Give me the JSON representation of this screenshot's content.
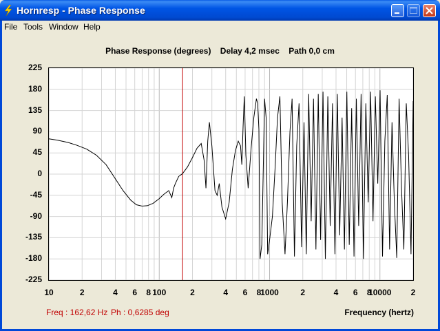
{
  "window": {
    "title": "Hornresp - Phase Response",
    "app_icon": "lightning-bolt-icon",
    "controls": [
      "minimize-icon",
      "maximize-icon",
      "close-icon"
    ]
  },
  "menu": {
    "items": [
      {
        "label": "File"
      },
      {
        "label": "Tools"
      },
      {
        "label": "Window"
      },
      {
        "label": "Help"
      }
    ]
  },
  "chart_title": "Phase Response (degrees)    Delay 4,2 msec    Path 0,0 cm",
  "readout": {
    "freq": "Freq : 162,62 Hz",
    "phase": "Ph : 0,6285 deg"
  },
  "colors": {
    "titlebar": "#0055e5",
    "cursor": "#c00000",
    "curve": "#000000",
    "readout": "#c00000",
    "grid": "#d4d4d4"
  },
  "chart_data": {
    "type": "line",
    "xlabel": "Frequency (hertz)",
    "ylabel": "",
    "x_scale": "log",
    "xlim": [
      10,
      20000
    ],
    "ylim": [
      -225,
      225
    ],
    "y_ticks": [
      "225",
      "180",
      "135",
      "90",
      "45",
      "0",
      "-45",
      "-90",
      "-135",
      "-180",
      "-225"
    ],
    "x_ticks": [
      {
        "value": 10,
        "label": "10"
      },
      {
        "value": 20,
        "label": "2"
      },
      {
        "value": 40,
        "label": "4"
      },
      {
        "value": 60,
        "label": "6"
      },
      {
        "value": 80,
        "label": "8"
      },
      {
        "value": 100,
        "label": "100"
      },
      {
        "value": 200,
        "label": "2"
      },
      {
        "value": 400,
        "label": "4"
      },
      {
        "value": 600,
        "label": "6"
      },
      {
        "value": 800,
        "label": "8"
      },
      {
        "value": 1000,
        "label": "1000"
      },
      {
        "value": 2000,
        "label": "2"
      },
      {
        "value": 4000,
        "label": "4"
      },
      {
        "value": 6000,
        "label": "6"
      },
      {
        "value": 8000,
        "label": "8"
      },
      {
        "value": 10000,
        "label": "10000"
      },
      {
        "value": 20000,
        "label": "2"
      }
    ],
    "cursor_x": 162.62,
    "grid": true,
    "series": [
      {
        "x": [
          10,
          12,
          15,
          18,
          22,
          27,
          33,
          40,
          47,
          55,
          62,
          70,
          78,
          88,
          100,
          110,
          122,
          130,
          135,
          140,
          150,
          162.6,
          180,
          200,
          220,
          240,
          255,
          265,
          275,
          285,
          300,
          320,
          335,
          350,
          370,
          400,
          430,
          460,
          490,
          520,
          545,
          560,
          575,
          590,
          610,
          640,
          680,
          720,
          760,
          780,
          800,
          820,
          850,
          880,
          900,
          930,
          960,
          1000,
          1060,
          1120,
          1180,
          1240,
          1300,
          1380,
          1450,
          1530,
          1600,
          1680,
          1760,
          1850,
          1950,
          2050,
          2150,
          2260,
          2380,
          2500,
          2630,
          2760,
          2900,
          3050,
          3200,
          3370,
          3540,
          3720,
          3910,
          4110,
          4320,
          4540,
          4770,
          5010,
          5270,
          5540,
          5820,
          6110,
          6420,
          6750,
          7090,
          7450,
          7830,
          8230,
          8650,
          9090,
          9550,
          10040,
          10550,
          11080,
          11650,
          12240,
          12860,
          13510,
          14200,
          14920,
          15680,
          16480,
          17320,
          18200,
          19130,
          20000
        ],
        "y": [
          75,
          72,
          67,
          61,
          53,
          40,
          20,
          -10,
          -35,
          -55,
          -65,
          -68,
          -67,
          -62,
          -52,
          -43,
          -35,
          -50,
          -30,
          -20,
          -5,
          1,
          15,
          35,
          55,
          65,
          30,
          -30,
          70,
          110,
          60,
          -35,
          -45,
          -20,
          -70,
          -95,
          -60,
          10,
          50,
          70,
          60,
          20,
          100,
          165,
          40,
          -30,
          55,
          120,
          160,
          150,
          95,
          -180,
          -150,
          30,
          160,
          120,
          -170,
          -140,
          -90,
          10,
          120,
          165,
          -60,
          -170,
          -60,
          90,
          160,
          -175,
          60,
          150,
          -155,
          110,
          -170,
          170,
          -100,
          160,
          -160,
          170,
          -140,
          175,
          -180,
          165,
          -110,
          150,
          -170,
          170,
          -130,
          120,
          -160,
          175,
          -150,
          140,
          -175,
          160,
          -110,
          170,
          -180,
          150,
          -60,
          175,
          -100,
          165,
          -20,
          178,
          -175,
          70,
          168,
          -160,
          110,
          -60,
          -178,
          160,
          -30,
          -160,
          150,
          40,
          -170,
          155
        ]
      }
    ]
  }
}
